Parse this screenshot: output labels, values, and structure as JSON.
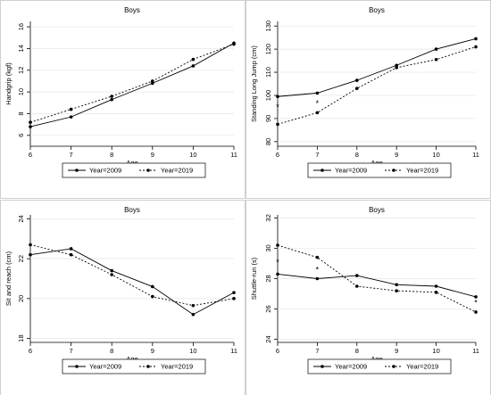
{
  "chart_data": [
    {
      "type": "line",
      "title": "Boys",
      "xlabel": "Age",
      "ylabel": "Handgrip (kgf)",
      "x": [
        6,
        7,
        8,
        9,
        10,
        11
      ],
      "xlim": [
        6,
        11
      ],
      "ylim": [
        5,
        16.5
      ],
      "yticks": [
        6,
        8,
        10,
        12,
        14,
        16
      ],
      "series": [
        {
          "name": "Year=2009",
          "style": "solid",
          "values": [
            6.8,
            7.7,
            9.3,
            10.8,
            12.4,
            14.5
          ]
        },
        {
          "name": "Year=2019",
          "style": "dotted",
          "values": [
            7.2,
            8.4,
            9.6,
            11.0,
            13.0,
            14.4
          ]
        }
      ],
      "annotations": [],
      "legend": "bottom"
    },
    {
      "type": "line",
      "title": "Boys",
      "xlabel": "Age",
      "ylabel": "Standing Long Jump (cm)",
      "x": [
        6,
        7,
        8,
        9,
        10,
        11
      ],
      "xlim": [
        6,
        11
      ],
      "ylim": [
        78,
        132
      ],
      "yticks": [
        80,
        90,
        100,
        110,
        120,
        130
      ],
      "series": [
        {
          "name": "Year=2009",
          "style": "solid",
          "values": [
            99.5,
            101,
            106.5,
            113,
            120,
            124.5
          ]
        },
        {
          "name": "Year=2019",
          "style": "dotted",
          "values": [
            87.5,
            92.5,
            103,
            112,
            115.5,
            121
          ]
        }
      ],
      "annotations": [
        {
          "x": 6,
          "y": 95,
          "text": "*"
        },
        {
          "x": 7,
          "y": 96.5,
          "text": "*"
        }
      ],
      "legend": "bottom"
    },
    {
      "type": "line",
      "title": "Boys",
      "xlabel": "Age",
      "ylabel": "Sit and reach (cm)",
      "x": [
        6,
        7,
        8,
        9,
        10,
        11
      ],
      "xlim": [
        6,
        11
      ],
      "ylim": [
        17.8,
        24.2
      ],
      "yticks": [
        18,
        20,
        22,
        24
      ],
      "series": [
        {
          "name": "Year=2009",
          "style": "solid",
          "values": [
            22.2,
            22.5,
            21.4,
            20.6,
            19.2,
            20.3
          ]
        },
        {
          "name": "Year=2019",
          "style": "dotted",
          "values": [
            22.7,
            22.2,
            21.2,
            20.1,
            19.65,
            20.0
          ]
        }
      ],
      "annotations": [],
      "legend": "bottom"
    },
    {
      "type": "line",
      "title": "Boys",
      "xlabel": "Age",
      "ylabel": "Shuttle-run (s)",
      "x": [
        6,
        7,
        8,
        9,
        10,
        11
      ],
      "xlim": [
        6,
        11
      ],
      "ylim": [
        23.8,
        32.2
      ],
      "yticks": [
        24,
        26,
        28,
        30,
        32
      ],
      "series": [
        {
          "name": "Year=2009",
          "style": "solid",
          "values": [
            28.3,
            28.0,
            28.2,
            27.6,
            27.5,
            26.8
          ]
        },
        {
          "name": "Year=2019",
          "style": "dotted",
          "values": [
            30.2,
            29.4,
            27.5,
            27.2,
            27.1,
            25.8
          ]
        }
      ],
      "annotations": [
        {
          "x": 6,
          "y": 29.1,
          "text": "*"
        },
        {
          "x": 7,
          "y": 28.6,
          "text": "*"
        },
        {
          "x": 11,
          "y": 26.4,
          "text": "*"
        }
      ],
      "legend": "bottom"
    }
  ]
}
